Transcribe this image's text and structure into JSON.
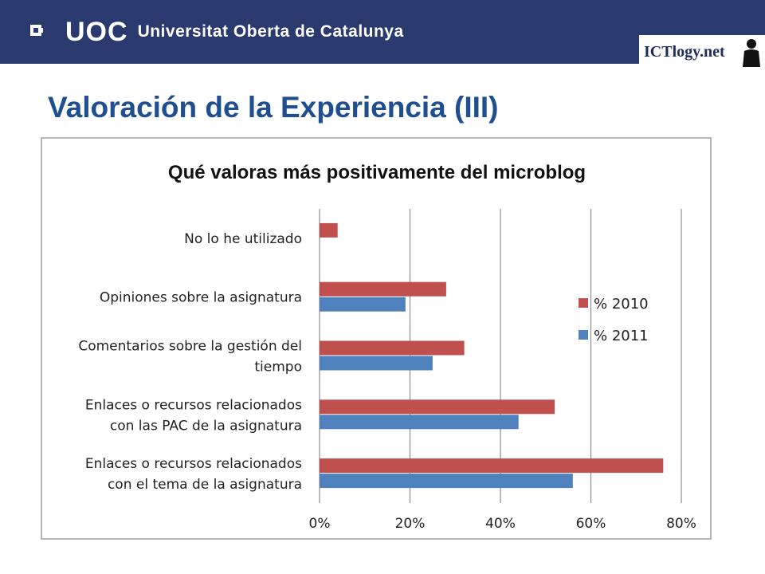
{
  "header": {
    "logo_text": "UOC",
    "institution": "Universitat Oberta de Catalunya",
    "badge": "ICTlogy.net"
  },
  "slide": {
    "title": "Valoración de la Experiencia (III)"
  },
  "colors": {
    "series_2010": "#c0504d",
    "series_2011": "#4f81bd",
    "header_bg": "#2a3a6e",
    "title": "#1f4e91"
  },
  "chart_data": {
    "type": "bar",
    "orientation": "horizontal",
    "title": "Qué valoras más positivamente del microblog",
    "categories": [
      [
        "No lo he utilizado"
      ],
      [
        "Opiniones sobre la asignatura"
      ],
      [
        "Comentarios sobre la gestión del",
        "tiempo"
      ],
      [
        "Enlaces o recursos relacionados",
        "con las PAC de la asignatura"
      ],
      [
        "Enlaces o recursos relacionados",
        "con el tema de la asignatura"
      ]
    ],
    "series": [
      {
        "name": "% 2010",
        "values": [
          4,
          28,
          32,
          52,
          76
        ]
      },
      {
        "name": "% 2011",
        "values": [
          0,
          19,
          25,
          44,
          56
        ]
      }
    ],
    "xlim": [
      0,
      80
    ],
    "xticks": [
      "0%",
      "20%",
      "40%",
      "60%",
      "80%"
    ],
    "grid": true,
    "legend_position": "right"
  }
}
